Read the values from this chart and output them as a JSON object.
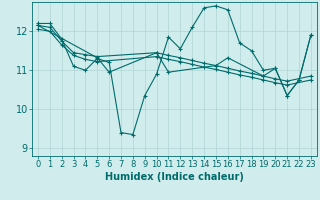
{
  "title": "",
  "xlabel": "Humidex (Indice chaleur)",
  "bg_color": "#d0ecec",
  "line_color": "#006b6b",
  "grid_color": "#b0d4d4",
  "xlim": [
    -0.5,
    23.5
  ],
  "ylim": [
    8.8,
    12.75
  ],
  "yticks": [
    9,
    10,
    11,
    12
  ],
  "xticks": [
    0,
    1,
    2,
    3,
    4,
    5,
    6,
    7,
    8,
    9,
    10,
    11,
    12,
    13,
    14,
    15,
    16,
    17,
    18,
    19,
    20,
    21,
    22,
    23
  ],
  "series": [
    {
      "x": [
        0,
        1,
        2,
        3,
        4,
        5,
        6,
        7,
        8,
        9,
        10,
        11,
        12,
        13,
        14,
        15,
        16,
        17,
        18,
        19,
        20,
        21,
        22,
        23
      ],
      "y": [
        12.2,
        12.2,
        11.8,
        11.1,
        11.0,
        11.3,
        11.2,
        9.4,
        9.35,
        10.35,
        10.9,
        11.85,
        11.55,
        12.1,
        12.6,
        12.65,
        12.55,
        11.7,
        11.5,
        11.0,
        11.05,
        10.35,
        10.75,
        11.9
      ]
    },
    {
      "x": [
        0,
        1,
        2,
        3,
        4,
        5,
        10,
        11,
        12,
        13,
        14,
        15,
        16,
        17,
        18,
        19,
        20,
        21,
        23
      ],
      "y": [
        12.15,
        12.1,
        11.75,
        11.45,
        11.4,
        11.35,
        11.45,
        11.38,
        11.32,
        11.25,
        11.18,
        11.12,
        11.05,
        10.98,
        10.92,
        10.85,
        10.78,
        10.72,
        10.85
      ]
    },
    {
      "x": [
        0,
        1,
        2,
        3,
        4,
        5,
        10,
        11,
        12,
        13,
        14,
        15,
        16,
        17,
        18,
        19,
        20,
        21,
        23
      ],
      "y": [
        12.05,
        12.0,
        11.65,
        11.38,
        11.28,
        11.22,
        11.35,
        11.28,
        11.22,
        11.15,
        11.08,
        11.02,
        10.95,
        10.88,
        10.82,
        10.75,
        10.68,
        10.62,
        10.75
      ]
    },
    {
      "x": [
        0,
        5,
        6,
        10,
        11,
        15,
        16,
        19,
        20,
        21,
        22,
        23
      ],
      "y": [
        12.15,
        11.32,
        10.95,
        11.45,
        10.95,
        11.12,
        11.32,
        10.85,
        11.05,
        10.35,
        10.75,
        11.9
      ]
    }
  ],
  "tick_fontsize": 6,
  "label_fontsize": 7
}
